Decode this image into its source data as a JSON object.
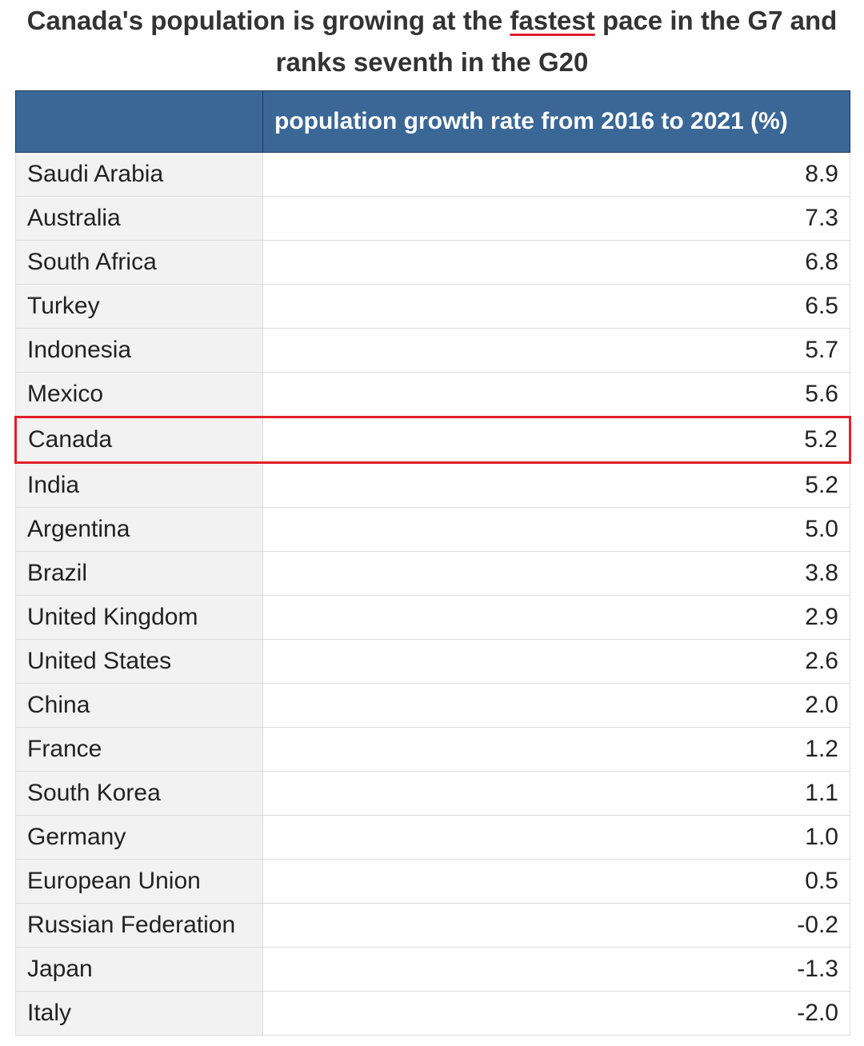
{
  "title": {
    "before": "Canada's population is growing at the",
    "emphasis": "fastest",
    "after": "pace in the G7 and ranks seventh in the G20"
  },
  "table": {
    "header": "population growth rate from 2016 to 2021 (%)",
    "rows": [
      [
        "Saudi Arabia",
        "8.9"
      ],
      [
        "Australia",
        "7.3"
      ],
      [
        "South Africa",
        "6.8"
      ],
      [
        "Turkey",
        "6.5"
      ],
      [
        "Indonesia",
        "5.7"
      ],
      [
        "Mexico",
        "5.6"
      ],
      [
        "Canada",
        "5.2"
      ],
      [
        "India",
        "5.2"
      ],
      [
        "Argentina",
        "5.0"
      ],
      [
        "Brazil",
        "3.8"
      ],
      [
        "United Kingdom",
        "2.9"
      ],
      [
        "United States",
        "2.6"
      ],
      [
        "China",
        "2.0"
      ],
      [
        "France",
        "1.2"
      ],
      [
        "South Korea",
        "1.1"
      ],
      [
        "Germany",
        "1.0"
      ],
      [
        "European Union",
        "0.5"
      ],
      [
        "Russian Federation",
        "-0.2"
      ],
      [
        "Japan",
        "-1.3"
      ],
      [
        "Italy",
        "-2.0"
      ]
    ]
  }
}
